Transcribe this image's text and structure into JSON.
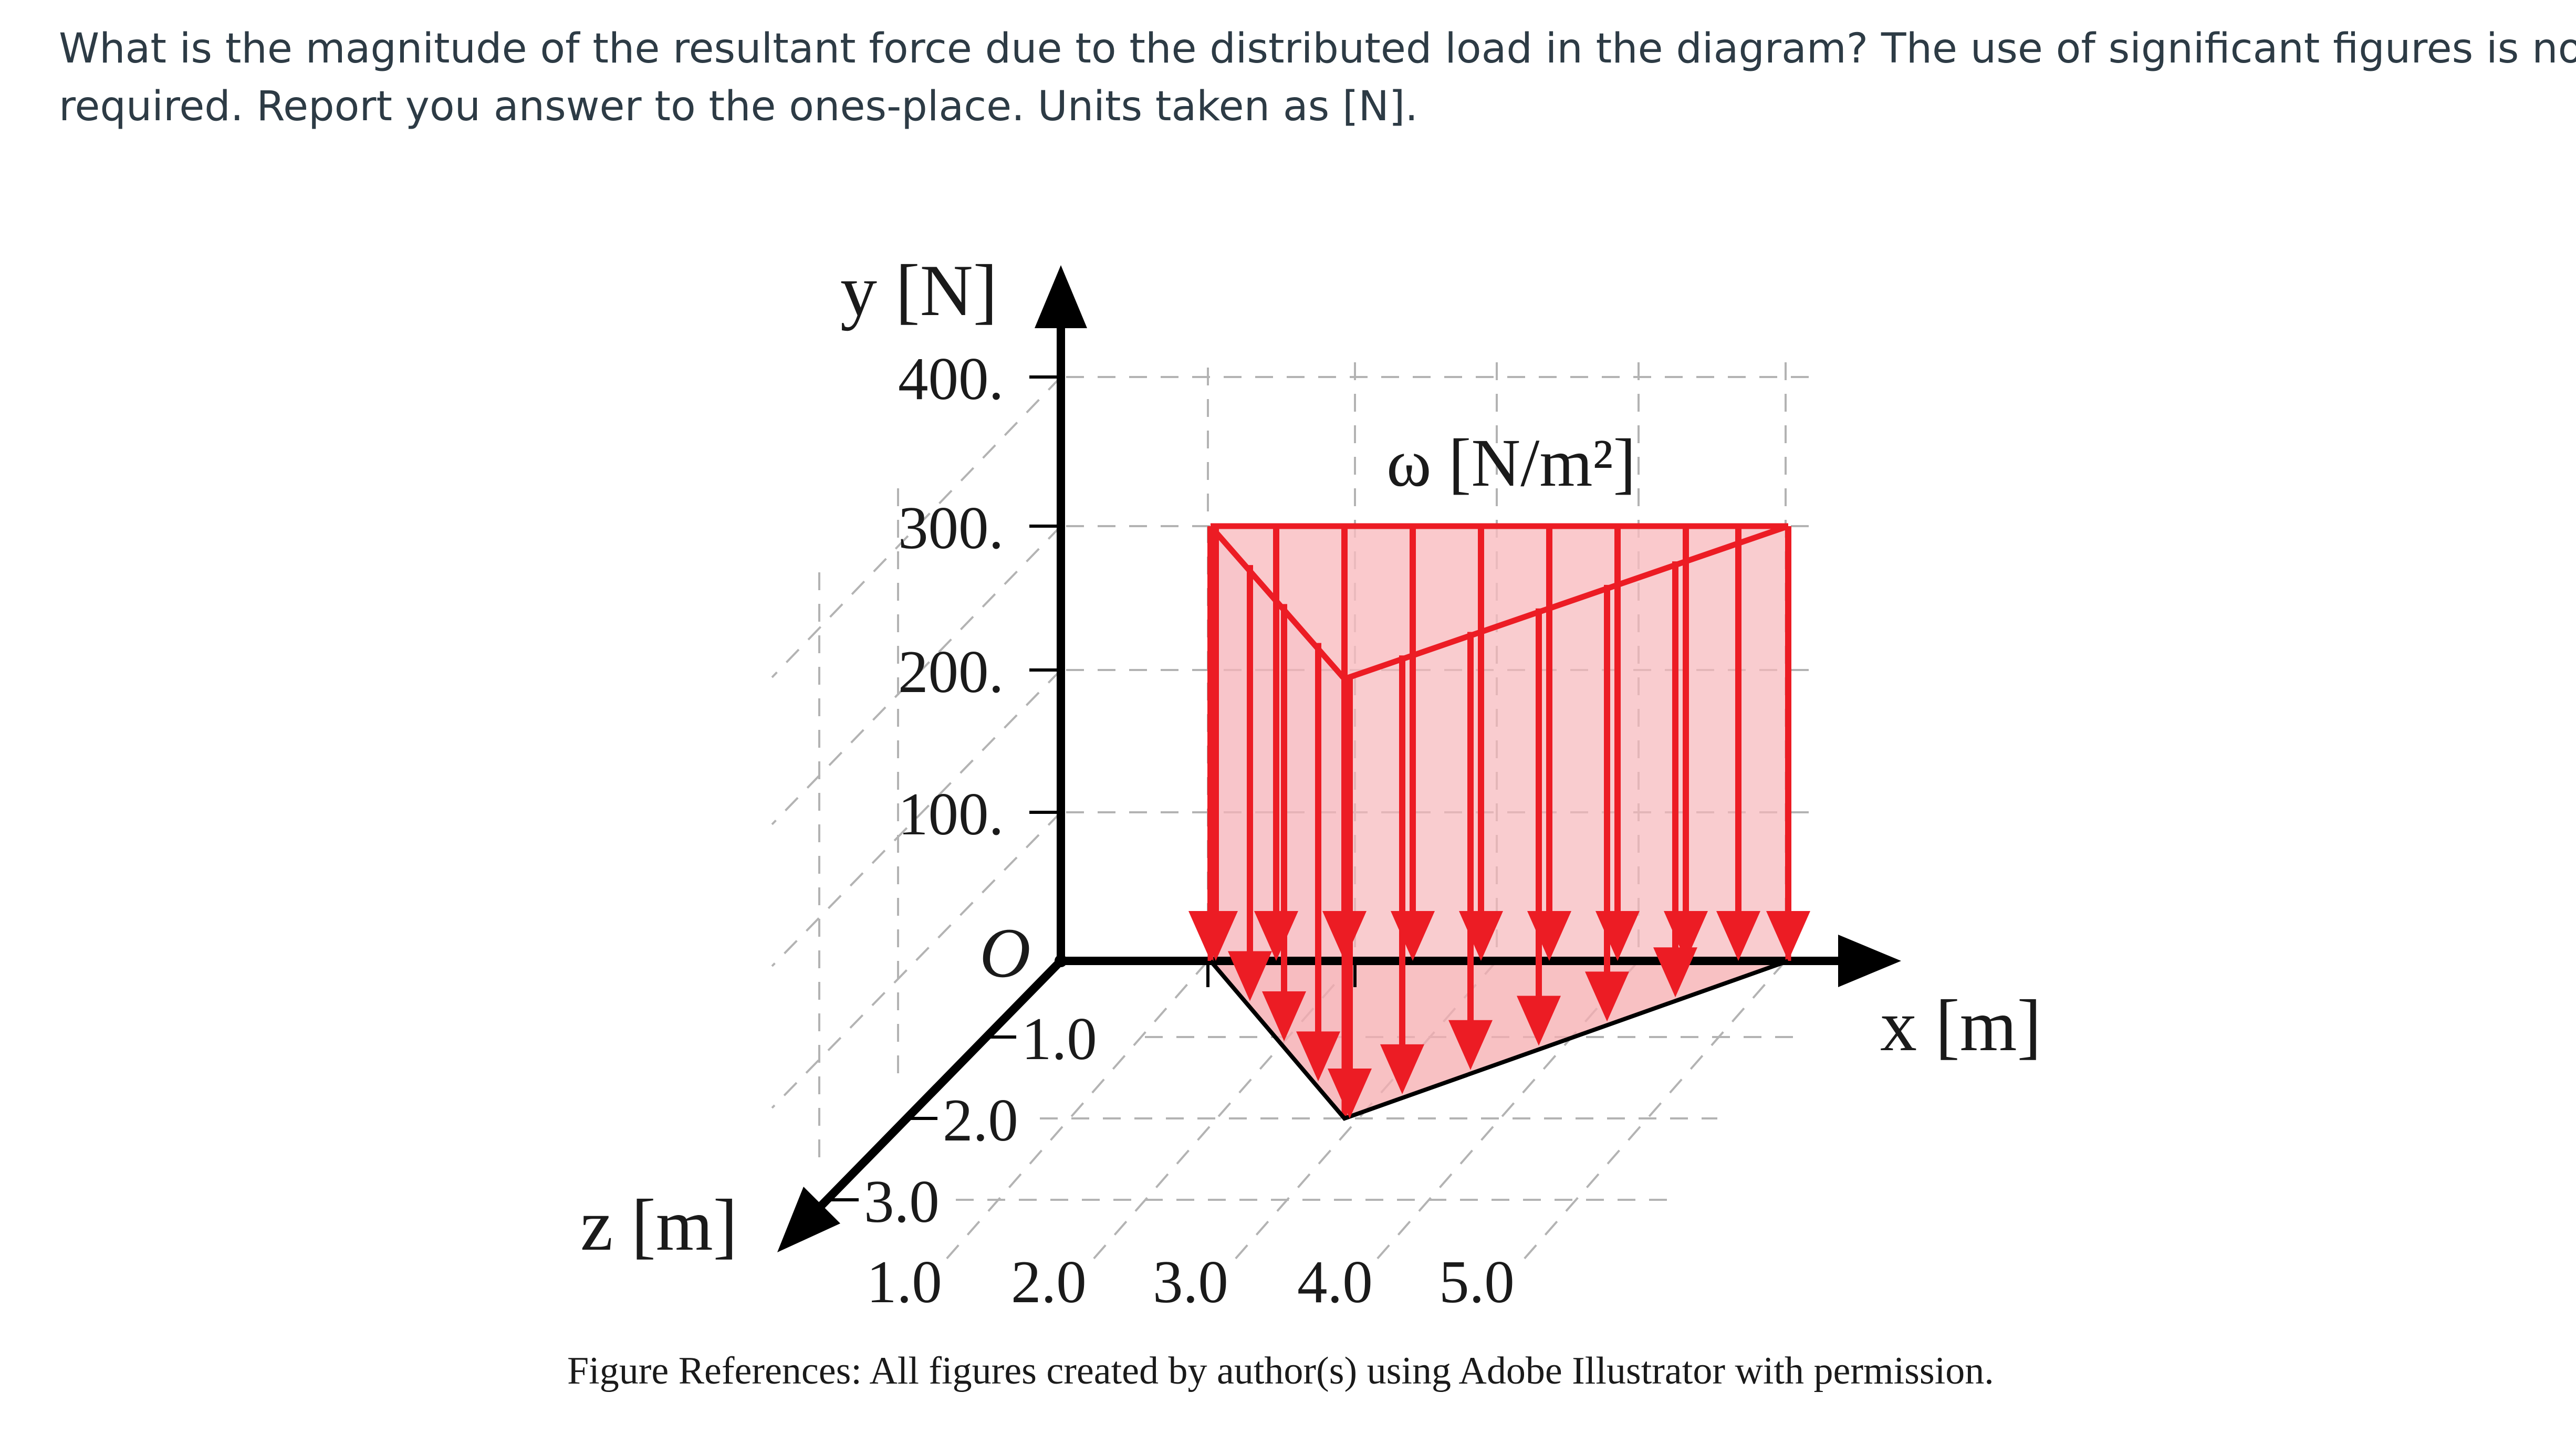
{
  "question": {
    "line1": "What is the magnitude of the resultant force due to the distributed load in the diagram? The use of significant figures is not",
    "line2": "required. Report you answer to the ones-place. Units taken as [N]."
  },
  "diagram": {
    "y_axis_label": "y [N]",
    "x_axis_label": "x [m]",
    "z_axis_label": "z [m]",
    "load_label": "ω [N/m²]",
    "origin_label": "O",
    "y_ticks": [
      "400.",
      "300.",
      "200.",
      "100."
    ],
    "z_ticks": [
      "1.0",
      "2.0",
      "3.0"
    ],
    "x_ticks": [
      "1.0",
      "2.0",
      "3.0",
      "4.0",
      "5.0"
    ],
    "load_color": "#ec1c24",
    "load_fill": "#f9c9cc",
    "load": {
      "x_start": 1.0,
      "x_end": 5.0,
      "intensity_top": 300,
      "peak_point": {
        "x": 2.0,
        "z": 2.0
      }
    },
    "figure_reference": "Figure References: All figures created by author(s) using Adobe Illustrator with permission."
  }
}
